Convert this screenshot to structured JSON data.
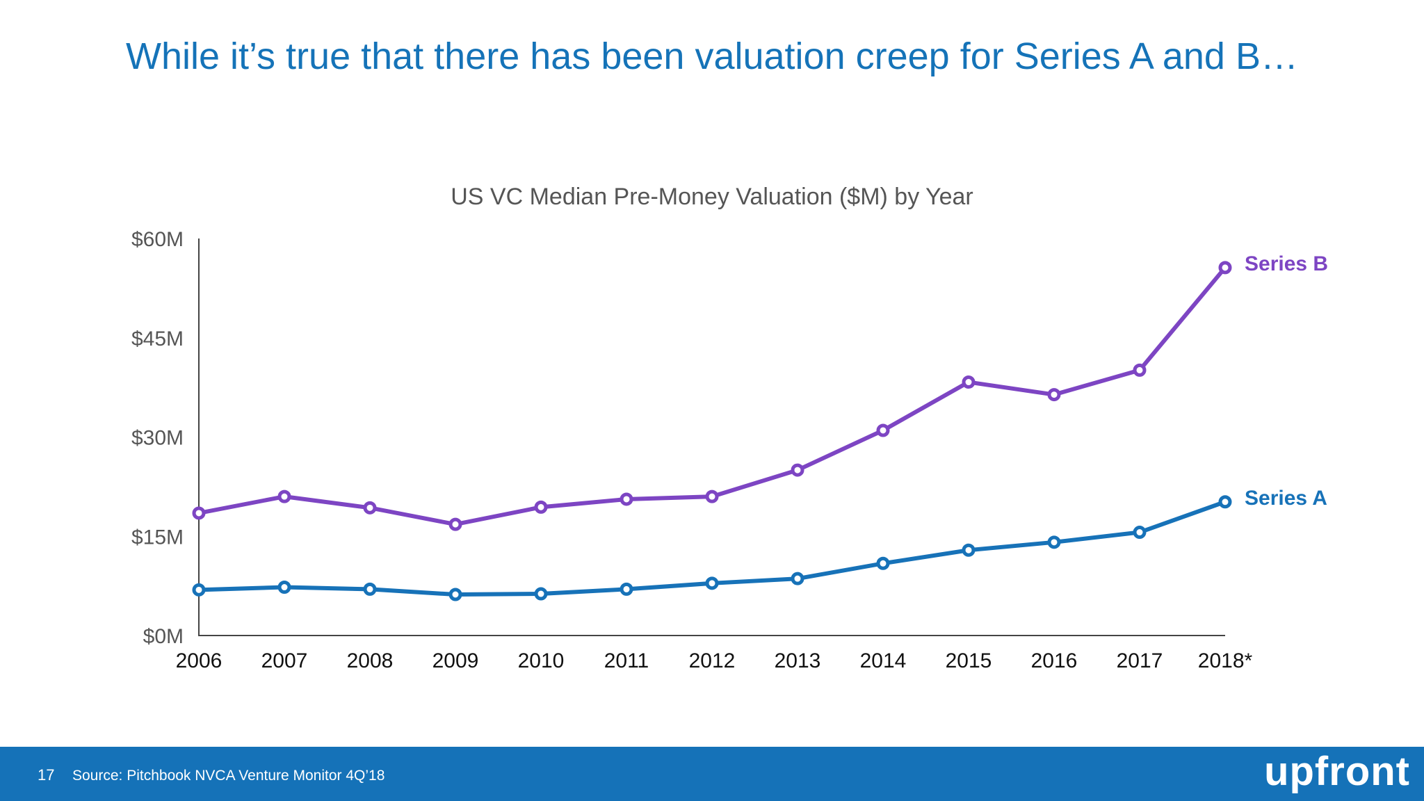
{
  "slide": {
    "title": "While it’s true that there has been valuation creep for Series A and B…",
    "page_number": "17",
    "source": "Source: Pitchbook NVCA Venture Monitor 4Q’18",
    "brand": "upfront"
  },
  "colors": {
    "title": "#1573b8",
    "series_a": "#1772b8",
    "series_b": "#7d45c3",
    "footer": "#1572b8"
  },
  "chart_data": {
    "type": "line",
    "title": "US VC Median Pre-Money Valuation ($M) by Year",
    "xlabel": "",
    "ylabel": "",
    "categories": [
      "2006",
      "2007",
      "2008",
      "2009",
      "2010",
      "2011",
      "2012",
      "2013",
      "2014",
      "2015",
      "2016",
      "2017",
      "2018*"
    ],
    "ylim": [
      0,
      60
    ],
    "y_ticks": [
      0,
      15,
      30,
      45,
      60
    ],
    "y_tick_labels": [
      "$0M",
      "$15M",
      "$30M",
      "$45M",
      "$60M"
    ],
    "grid": false,
    "legend": "direct labels at line ends",
    "series": [
      {
        "name": "Series B",
        "values": [
          18.5,
          21.0,
          19.3,
          16.8,
          19.4,
          20.6,
          21.0,
          25.0,
          31.0,
          38.3,
          36.4,
          40.1,
          55.6
        ]
      },
      {
        "name": "Series A",
        "values": [
          6.9,
          7.3,
          7.0,
          6.2,
          6.3,
          7.0,
          7.9,
          8.6,
          10.9,
          12.9,
          14.1,
          15.6,
          20.2
        ]
      }
    ]
  }
}
